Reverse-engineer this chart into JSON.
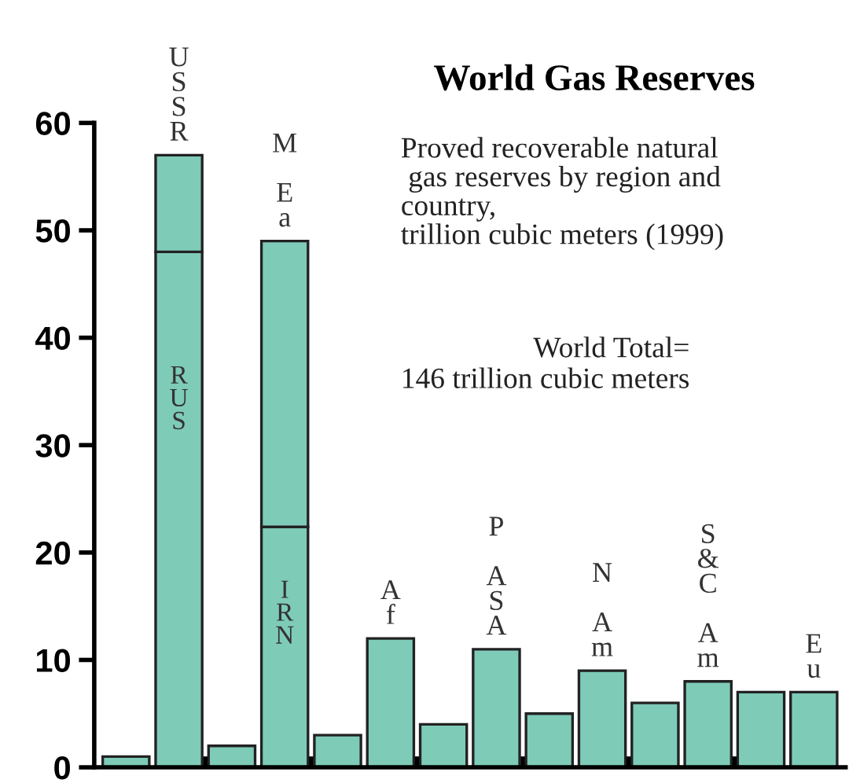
{
  "chart_data": {
    "type": "bar",
    "title": "World Gas Reserves",
    "subtitle": "Proved recoverable natural\n gas reserves by region and\ncountry,\ntrillion cubic meters (1999)",
    "annotations": [
      "World Total=\n146 trillion cubic meters"
    ],
    "categories": [
      null,
      "U\nS\nS\nR",
      null,
      "M\n\nE\na",
      null,
      "A\nf",
      null,
      "P\n\nA\nS\nA",
      null,
      "N\n\nA\nm",
      null,
      "S\n&\nC\n\nA\nm",
      null,
      "E\nu"
    ],
    "stacked": true,
    "series": [
      {
        "color": "#7ecbb8",
        "values": [
          1,
          48,
          2,
          22.4,
          3,
          12,
          4,
          11,
          5,
          9,
          6,
          8,
          7,
          7
        ],
        "value_labels": [
          null,
          "R\nU\nS",
          null,
          "I\nR\nN",
          null,
          null,
          null,
          null,
          null,
          null,
          null,
          null,
          null,
          null
        ]
      },
      {
        "color": "#7ecbb8",
        "values": [
          null,
          9,
          null,
          26.6,
          null,
          null,
          null,
          null,
          null,
          null,
          null,
          null,
          null,
          null
        ]
      }
    ],
    "ylim": [
      0,
      60
    ],
    "yticks": [
      0,
      10,
      20,
      30,
      40,
      50,
      60
    ],
    "grid": false,
    "legend": false
  }
}
